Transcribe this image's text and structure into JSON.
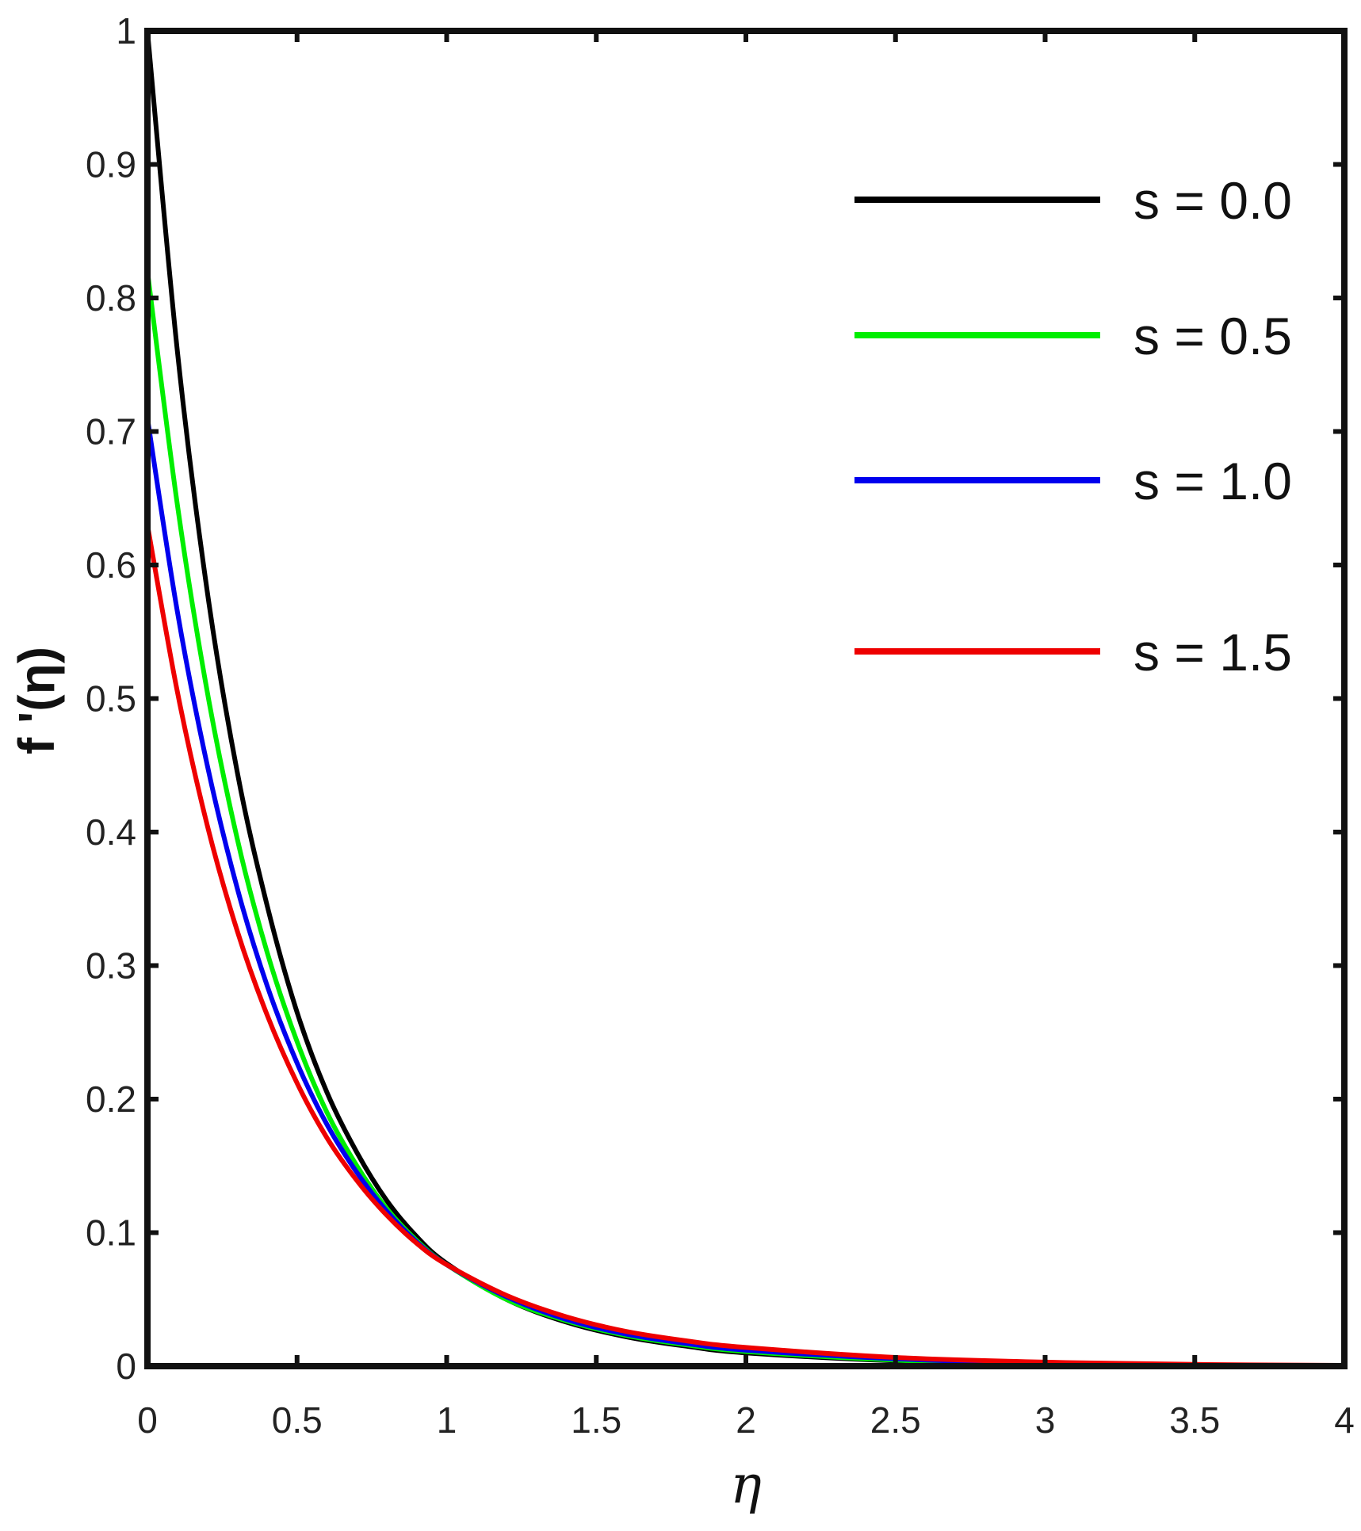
{
  "chart_data": {
    "type": "line",
    "title": "",
    "xlabel": "η",
    "ylabel": "f '(η)",
    "xlim": [
      0,
      4
    ],
    "ylim": [
      0,
      1
    ],
    "xticks": [
      0,
      0.5,
      1,
      1.5,
      2,
      2.5,
      3,
      3.5,
      4
    ],
    "yticks": [
      0,
      0.1,
      0.2,
      0.3,
      0.4,
      0.5,
      0.6,
      0.7,
      0.8,
      0.9,
      1
    ],
    "xtick_labels": [
      "0",
      "0.5",
      "1",
      "1.5",
      "2",
      "2.5",
      "3",
      "3.5",
      "4"
    ],
    "ytick_labels": [
      "0",
      "0.1",
      "0.2",
      "0.3",
      "0.4",
      "0.5",
      "0.6",
      "0.7",
      "0.8",
      "0.9",
      "1"
    ],
    "grid": false,
    "legend_position": "top-right",
    "x": [
      0,
      0.1,
      0.2,
      0.3,
      0.4,
      0.5,
      0.6,
      0.7,
      0.8,
      0.9,
      1.0,
      1.2,
      1.4,
      1.6,
      1.8,
      2.0,
      2.5,
      3.0,
      3.5,
      4.0
    ],
    "series": [
      {
        "name": "s = 0.0",
        "color": "#000000",
        "values": [
          1.0,
          0.76,
          0.58,
          0.445,
          0.345,
          0.265,
          0.205,
          0.16,
          0.124,
          0.097,
          0.077,
          0.05,
          0.033,
          0.022,
          0.015,
          0.01,
          0.004,
          0.0015,
          0.0006,
          0.0002
        ]
      },
      {
        "name": "s = 0.5",
        "color": "#00ee00",
        "values": [
          0.82,
          0.645,
          0.505,
          0.395,
          0.31,
          0.243,
          0.19,
          0.15,
          0.118,
          0.094,
          0.076,
          0.05,
          0.034,
          0.023,
          0.016,
          0.011,
          0.0045,
          0.0018,
          0.0007,
          0.0003
        ]
      },
      {
        "name": "s = 1.0",
        "color": "#0000ee",
        "values": [
          0.71,
          0.565,
          0.45,
          0.358,
          0.285,
          0.227,
          0.181,
          0.145,
          0.116,
          0.093,
          0.076,
          0.052,
          0.035,
          0.024,
          0.017,
          0.012,
          0.0055,
          0.0022,
          0.0009,
          0.0004
        ]
      },
      {
        "name": "s = 1.5",
        "color": "#ee0000",
        "values": [
          0.63,
          0.505,
          0.405,
          0.326,
          0.263,
          0.212,
          0.171,
          0.139,
          0.113,
          0.092,
          0.076,
          0.053,
          0.037,
          0.026,
          0.019,
          0.014,
          0.0065,
          0.003,
          0.0013,
          0.0006
        ]
      }
    ]
  }
}
